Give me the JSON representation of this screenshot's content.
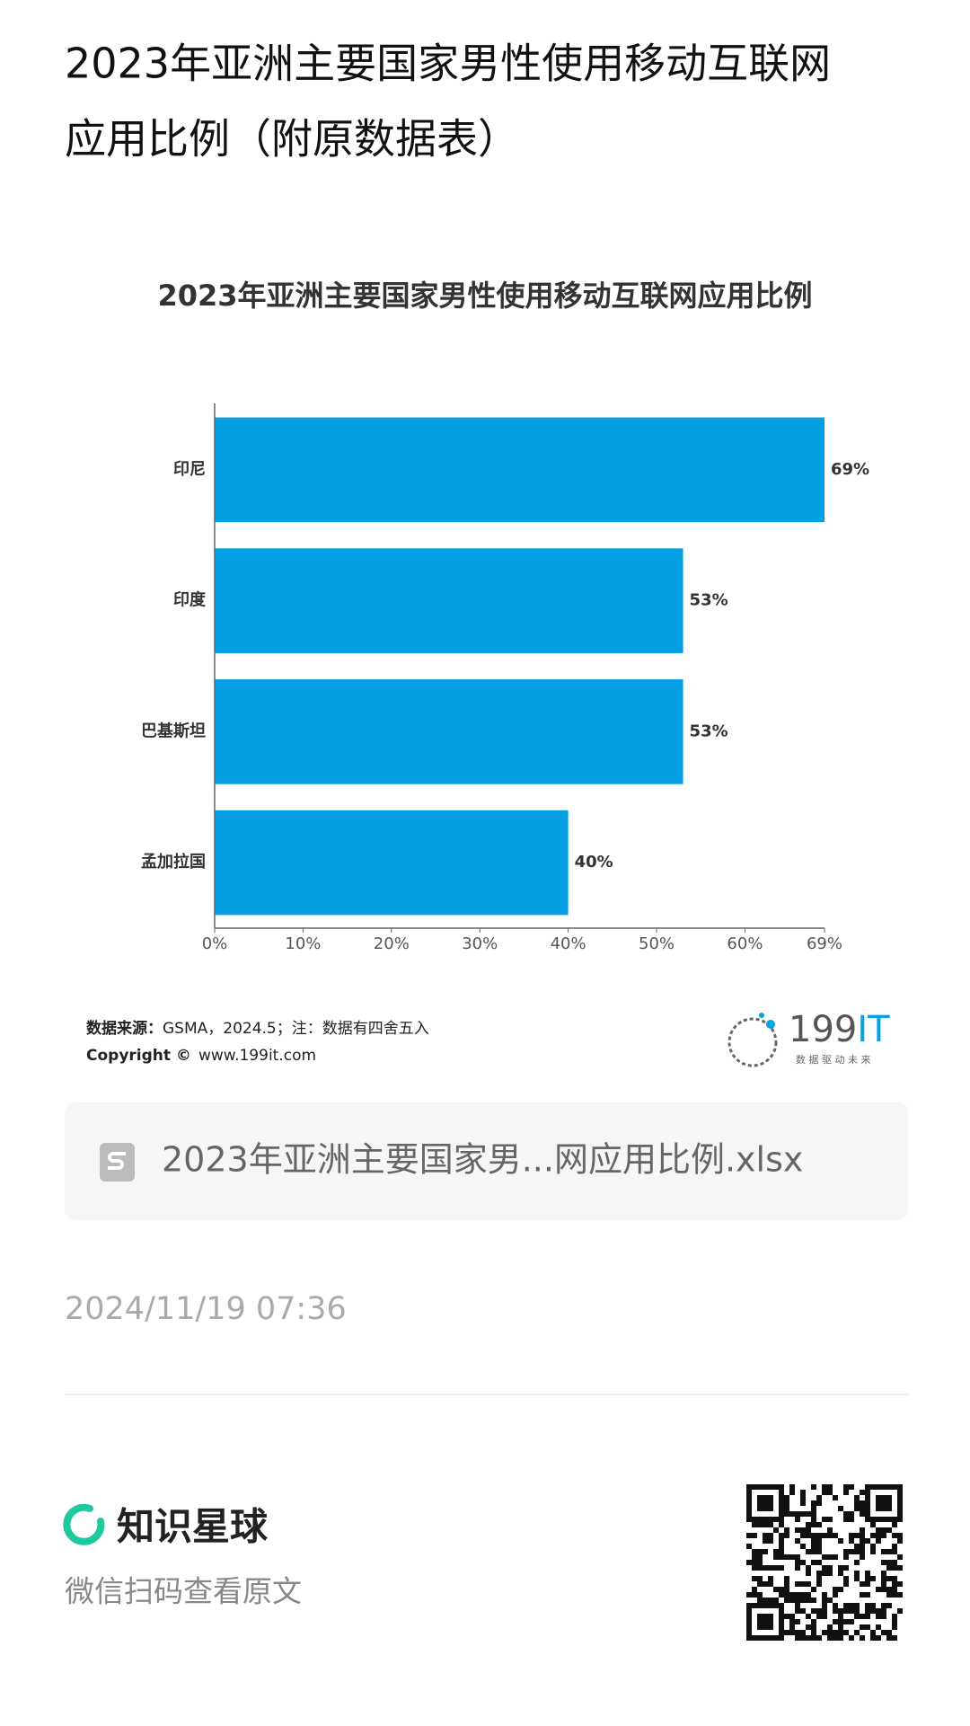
{
  "header": {
    "title_line1": "2023年亚洲主要国家男性使用移动互联网",
    "title_line2": "应用比例（附原数据表）"
  },
  "chart_data": {
    "type": "hbar",
    "title": "2023年亚洲主要国家男性使用移动互联网应用比例",
    "categories": [
      "印尼",
      "印度",
      "巴基斯坦",
      "孟加拉国"
    ],
    "values": [
      69,
      53,
      53,
      40
    ],
    "value_labels": [
      "69%",
      "53%",
      "53%",
      "40%"
    ],
    "color": "#05a0e3",
    "xlim": [
      0,
      69
    ],
    "xticks": [
      {
        "value": 0,
        "label": "0%"
      },
      {
        "value": 10,
        "label": "10%"
      },
      {
        "value": 20,
        "label": "20%"
      },
      {
        "value": 30,
        "label": "30%"
      },
      {
        "value": 40,
        "label": "40%"
      },
      {
        "value": 50,
        "label": "50%"
      },
      {
        "value": 60,
        "label": "60%"
      },
      {
        "value": 69,
        "label": "69%"
      }
    ],
    "grid": false
  },
  "source": {
    "label": "数据来源：",
    "text": "GSMA，2024.5；注：数据有四舍五入"
  },
  "copyright": {
    "label": "Copyright ©",
    "text": "www.199it.com"
  },
  "logo": {
    "number": "199",
    "letters": "IT",
    "slogan": "数 据 驱 动 未 来"
  },
  "file": {
    "name": "2023年亚洲主要国家男...网应用比例.xlsx"
  },
  "timestamp": "2024/11/19 07:36",
  "footer": {
    "brand": "知识星球",
    "hint": "微信扫码查看原文"
  }
}
